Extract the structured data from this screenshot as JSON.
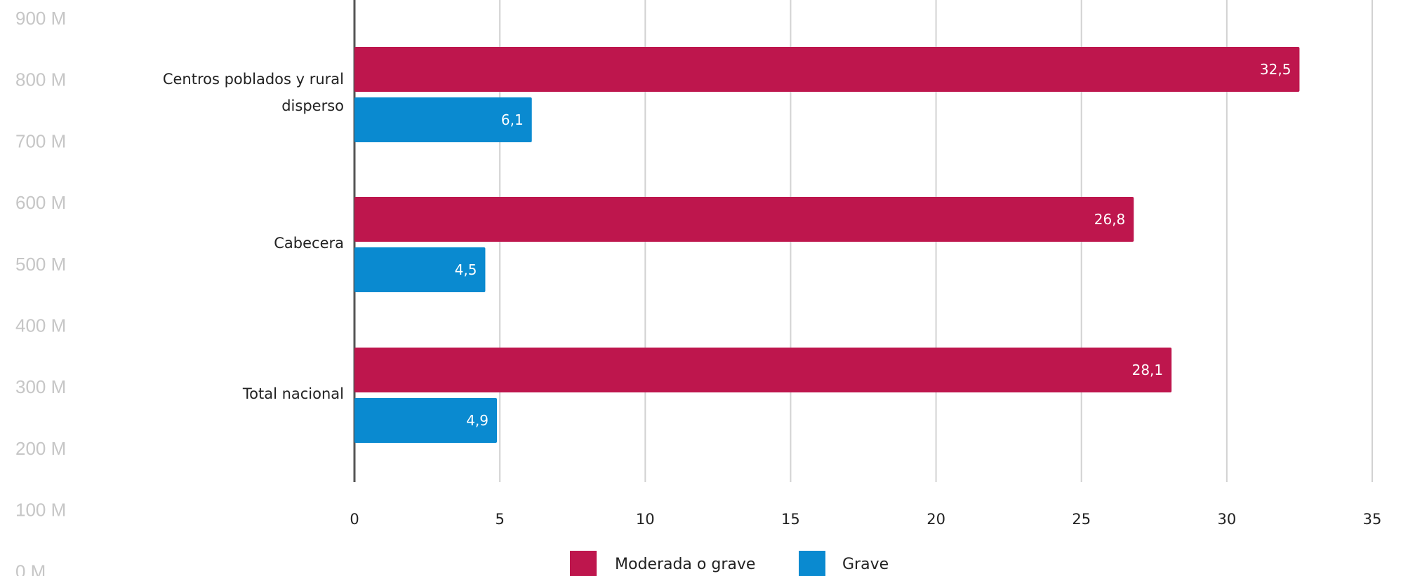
{
  "chart_data": {
    "type": "bar",
    "orientation": "horizontal",
    "categories": [
      "Centros poblados y rural disperso",
      "Cabecera",
      "Total nacional"
    ],
    "category_label_lines": [
      [
        "Centros poblados y rural",
        "disperso"
      ],
      [
        "Cabecera"
      ],
      [
        "Total nacional"
      ]
    ],
    "series": [
      {
        "name": "Moderada o grave",
        "color": "#be164d",
        "values": [
          32.5,
          26.8,
          28.1
        ],
        "labels": [
          "32,5",
          "26,8",
          "28,1"
        ]
      },
      {
        "name": "Grave",
        "color": "#0a8ad0",
        "values": [
          6.1,
          4.5,
          4.9
        ],
        "labels": [
          "6,1",
          "4,5",
          "4,9"
        ]
      }
    ],
    "xlim": [
      0,
      35
    ],
    "xticks": [
      0,
      5,
      10,
      15,
      20,
      25,
      30,
      35
    ],
    "grid": true,
    "legend_position": "bottom",
    "title": "",
    "xlabel": "",
    "ylabel": "",
    "background_axis_labels": [
      "900 M",
      "800 M",
      "700 M",
      "600 M",
      "500 M",
      "400 M",
      "300 M",
      "200 M",
      "100 M",
      "0 M"
    ]
  }
}
